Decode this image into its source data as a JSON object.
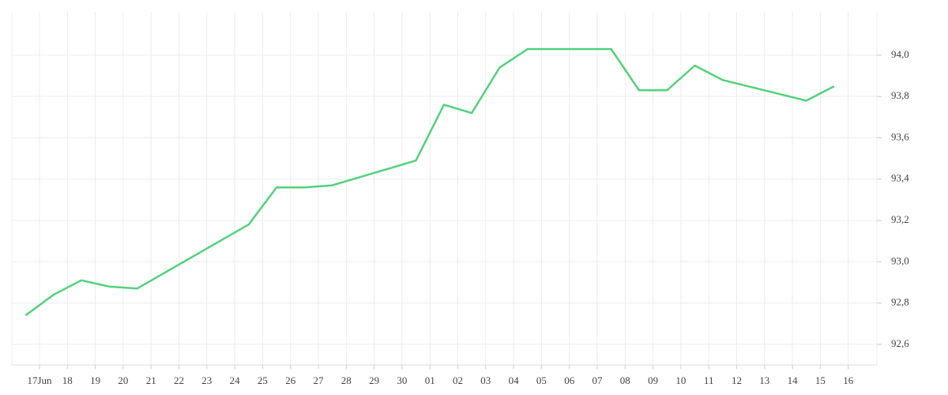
{
  "chart_data": {
    "type": "line",
    "categories": [
      "17Jun",
      "18",
      "19",
      "20",
      "21",
      "22",
      "23",
      "24",
      "25",
      "26",
      "27",
      "28",
      "29",
      "30",
      "01",
      "02",
      "03",
      "04",
      "05",
      "06",
      "07",
      "08",
      "09",
      "10",
      "11",
      "12",
      "13",
      "14",
      "15",
      "16"
    ],
    "series": [
      {
        "color": "#52d17c",
        "values": [
          92.74,
          92.84,
          92.91,
          92.88,
          92.87,
          null,
          null,
          null,
          93.18,
          93.36,
          93.36,
          93.37,
          null,
          null,
          93.49,
          93.76,
          93.72,
          93.94,
          94.03,
          null,
          null,
          94.03,
          93.83,
          93.83,
          93.95,
          93.88,
          null,
          null,
          93.78,
          93.85
        ]
      }
    ],
    "span_gaps": true,
    "ylim": [
      92.5,
      94.21
    ],
    "yticks": [
      {
        "value": 92.6,
        "label": "92,6"
      },
      {
        "value": 92.8,
        "label": "92,8"
      },
      {
        "value": 93,
        "label": "93,0"
      },
      {
        "value": 93.2,
        "label": "93,2"
      },
      {
        "value": 93.4,
        "label": "93,4"
      },
      {
        "value": 93.6,
        "label": "93,6"
      },
      {
        "value": 93.8,
        "label": "93,8"
      },
      {
        "value": 94,
        "label": "94,0"
      }
    ],
    "y_axis_side": "right",
    "grid": true
  }
}
